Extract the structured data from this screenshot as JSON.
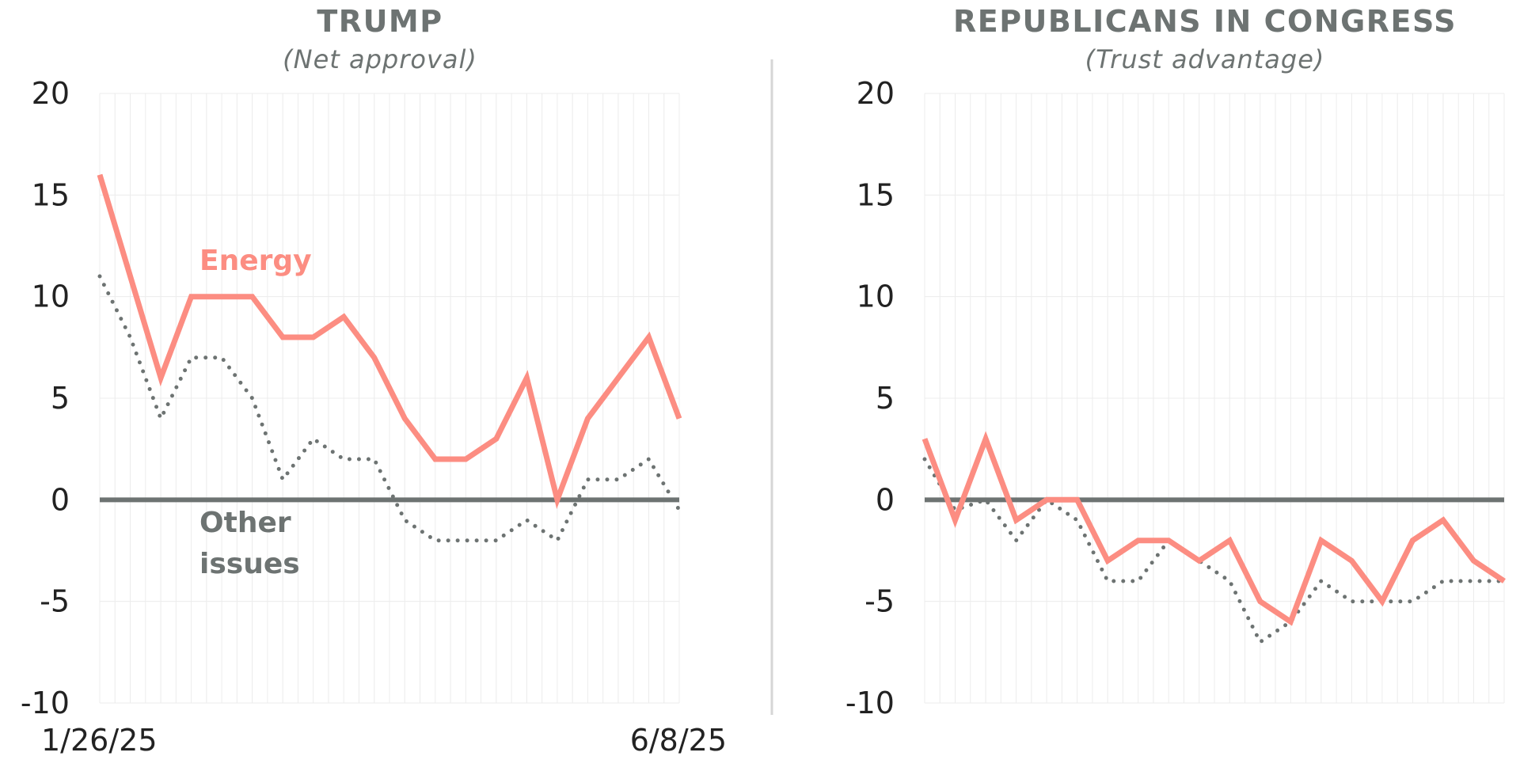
{
  "colors": {
    "energy": "#fc8d82",
    "other": "#6d7372",
    "zero_line": "#6d7372",
    "grid": "#ececec",
    "divider": "#d6d6d6"
  },
  "chart_data": [
    {
      "type": "line",
      "title": "TRUMP",
      "subtitle": "(Net approval)",
      "x_start_label": "1/26/25",
      "x_end_label": "6/8/25",
      "ylim": [
        -10,
        20
      ],
      "yticks": [
        "20",
        "15",
        "10",
        "5",
        "0",
        "-5",
        "-10"
      ],
      "grid": true,
      "annotations": {
        "energy": "Energy",
        "other_line1": "Other",
        "other_line2": "issues"
      },
      "series": [
        {
          "name": "Energy",
          "style": "solid",
          "x": [
            0,
            2,
            3,
            4,
            5,
            6,
            7,
            8,
            9,
            10,
            11,
            12,
            13,
            14,
            15,
            16,
            17,
            18,
            19
          ],
          "values": [
            16,
            6,
            10,
            10,
            10,
            8,
            8,
            9,
            7,
            4,
            2,
            2,
            3,
            6,
            0,
            4,
            6,
            8,
            4
          ]
        },
        {
          "name": "Other issues",
          "style": "dotted",
          "x": [
            0,
            1,
            2,
            3,
            4,
            5,
            6,
            7,
            8,
            9,
            10,
            11,
            12,
            13,
            14,
            15,
            16,
            17,
            18,
            19
          ],
          "values": [
            11,
            8,
            4,
            7,
            7,
            5,
            1,
            3,
            2,
            2,
            -1,
            -2,
            -2,
            -2,
            -1,
            -2,
            1,
            1,
            2,
            -0.5
          ]
        }
      ]
    },
    {
      "type": "line",
      "title": "REPUBLICANS IN CONGRESS",
      "subtitle": "(Trust advantage)",
      "ylim": [
        -10,
        20
      ],
      "yticks": [
        "20",
        "15",
        "10",
        "5",
        "0",
        "-5",
        "-10"
      ],
      "grid": true,
      "series": [
        {
          "name": "Energy",
          "style": "solid",
          "x": [
            0,
            1,
            2,
            3,
            4,
            5,
            6,
            7,
            8,
            9,
            10,
            11,
            12,
            13,
            14,
            15,
            16,
            17,
            18,
            19
          ],
          "values": [
            3,
            -1,
            3,
            -1,
            0,
            0,
            -3,
            -2,
            -2,
            -3,
            -2,
            -5,
            -6,
            -2,
            -3,
            -5,
            -2,
            -1,
            -3,
            -4
          ]
        },
        {
          "name": "Other issues",
          "style": "dotted",
          "x": [
            0,
            1,
            2,
            3,
            4,
            5,
            6,
            7,
            8,
            9,
            10,
            11,
            12,
            13,
            14,
            15,
            16,
            17,
            18,
            19
          ],
          "values": [
            2,
            -0.5,
            0,
            -2,
            0,
            -1,
            -4,
            -4,
            -2,
            -3,
            -4,
            -7,
            -6,
            -4,
            -5,
            -5,
            -5,
            -4,
            -4,
            -4
          ]
        }
      ]
    }
  ]
}
